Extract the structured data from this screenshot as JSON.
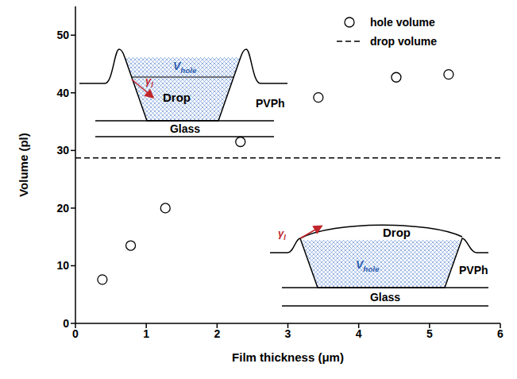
{
  "chart_data": {
    "type": "scatter",
    "x_label": "Film thickness (μm)",
    "y_label": "Volume (pl)",
    "xlim": [
      0,
      6
    ],
    "xticks": [
      0,
      1,
      2,
      3,
      4,
      5,
      6
    ],
    "ylim": [
      0,
      55
    ],
    "yticks": [
      0,
      10,
      20,
      30,
      40,
      50
    ],
    "legend": "upper right",
    "series": [
      {
        "name": "hole volume",
        "type": "scatter",
        "marker": "open circle",
        "color": "#000000",
        "x": [
          0.38,
          0.78,
          1.27,
          2.33,
          3.43,
          4.53,
          5.27
        ],
        "values": [
          7.6,
          13.5,
          20.0,
          31.5,
          39.2,
          42.7,
          43.2
        ]
      },
      {
        "name": "drop volume",
        "type": "hline",
        "line_style": "dashed",
        "color": "#000000",
        "values": [
          28.7
        ]
      }
    ],
    "insets": [
      {
        "volume": {
          "text": "V",
          "sub": "hole"
        },
        "drop": "Drop",
        "film": "PVPh",
        "substrate": "Glass",
        "tension": {
          "text": "γ",
          "sub": "l"
        }
      },
      {
        "volume": {
          "text": "V",
          "sub": "hole"
        },
        "drop": "Drop",
        "film": "PVPh",
        "substrate": "Glass",
        "tension": {
          "text": "γ",
          "sub": "l"
        }
      }
    ]
  }
}
